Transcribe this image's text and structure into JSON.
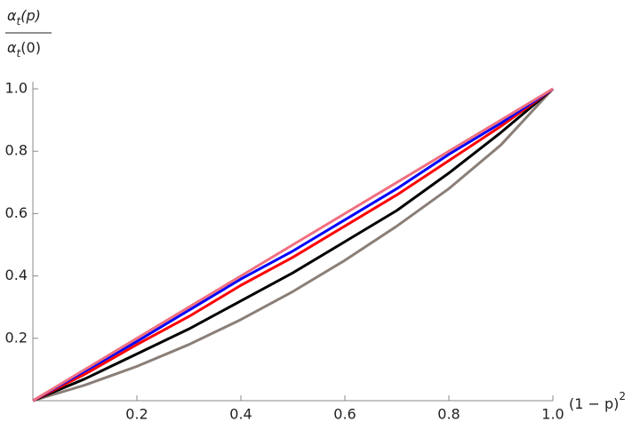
{
  "chart_data": {
    "type": "line",
    "ylabel": {
      "numerator": {
        "symbol": "α",
        "subscript": "t",
        "argument": "(p)"
      },
      "denominator": {
        "symbol": "α",
        "subscript": "t",
        "argument": "(0)"
      }
    },
    "xlabel": {
      "base": "(1 − p)",
      "exponent": "2"
    },
    "x": [
      0,
      0.1,
      0.2,
      0.3,
      0.4,
      0.5,
      0.6,
      0.7,
      0.8,
      0.9,
      1
    ],
    "series": [
      {
        "color": "#8a7f78",
        "values": [
          0,
          0.05,
          0.11,
          0.18,
          0.26,
          0.35,
          0.45,
          0.56,
          0.68,
          0.82,
          1
        ]
      },
      {
        "color": "#000000",
        "values": [
          0,
          0.07,
          0.15,
          0.23,
          0.32,
          0.41,
          0.51,
          0.61,
          0.73,
          0.86,
          1
        ]
      },
      {
        "color": "#ff0000",
        "values": [
          0,
          0.085,
          0.18,
          0.27,
          0.37,
          0.46,
          0.56,
          0.66,
          0.77,
          0.88,
          1
        ]
      },
      {
        "color": "#0000ff",
        "values": [
          0,
          0.095,
          0.19,
          0.29,
          0.39,
          0.48,
          0.58,
          0.68,
          0.79,
          0.89,
          1
        ]
      },
      {
        "color": "#f07080",
        "values": [
          0,
          0.1,
          0.2,
          0.3,
          0.4,
          0.5,
          0.6,
          0.7,
          0.8,
          0.9,
          1
        ]
      }
    ],
    "xlim": [
      0,
      1
    ],
    "ylim": [
      0,
      1
    ],
    "xticks": [
      {
        "value": 0.2,
        "label": "0.2"
      },
      {
        "value": 0.4,
        "label": "0.4"
      },
      {
        "value": 0.6,
        "label": "0.6"
      },
      {
        "value": 0.8,
        "label": "0.8"
      },
      {
        "value": 1,
        "label": "1.0"
      }
    ],
    "yticks": [
      {
        "value": 0.2,
        "label": "0.2"
      },
      {
        "value": 0.4,
        "label": "0.4"
      },
      {
        "value": 0.6,
        "label": "0.6"
      },
      {
        "value": 0.8,
        "label": "0.8"
      },
      {
        "value": 1,
        "label": "1.0"
      }
    ]
  }
}
